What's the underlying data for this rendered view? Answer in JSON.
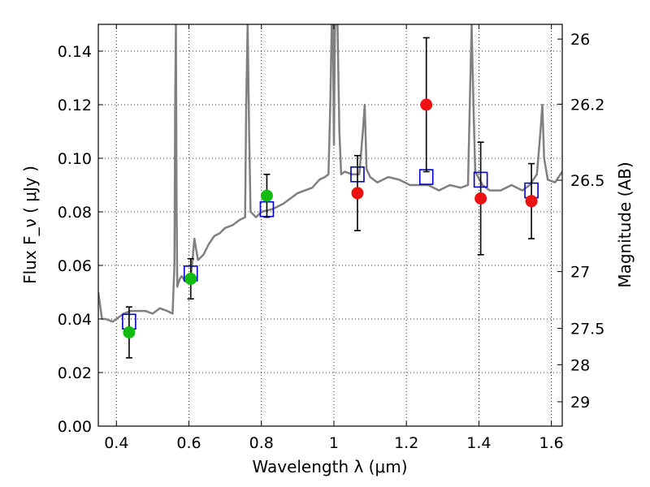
{
  "chart_data": {
    "type": "scatter",
    "xlabel": "Wavelength  λ (μm)",
    "ylabel": "Flux  F_ν  ( μJy )",
    "y2label": "Magnitude (AB)",
    "xlim": [
      0.35,
      1.63
    ],
    "ylim": [
      0.0,
      0.15
    ],
    "grid": true,
    "x_ticks": [
      0.4,
      0.6,
      0.8,
      1.0,
      1.2,
      1.4,
      1.6
    ],
    "x_tick_labels": [
      "0.4",
      "0.6",
      "0.8",
      "1",
      "1.2",
      "1.4",
      "1.6"
    ],
    "y_ticks": [
      0.0,
      0.02,
      0.04,
      0.06,
      0.08,
      0.1,
      0.12,
      0.14
    ],
    "y_tick_labels": [
      "0.00",
      "0.02",
      "0.04",
      "0.06",
      "0.08",
      "0.10",
      "0.12",
      "0.14"
    ],
    "y2_ticks": [
      {
        "label": "26",
        "flux": 0.1445
      },
      {
        "label": "26.2",
        "flux": 0.1202
      },
      {
        "label": "26.5",
        "flux": 0.0918
      },
      {
        "label": "27",
        "flux": 0.0577
      },
      {
        "label": "27.5",
        "flux": 0.0365
      },
      {
        "label": "28",
        "flux": 0.0229
      },
      {
        "label": "29",
        "flux": 0.0091
      }
    ],
    "series": [
      {
        "kind": "template-spectrum",
        "color": "#808080",
        "x": [
          0.35,
          0.36,
          0.37,
          0.39,
          0.4,
          0.42,
          0.44,
          0.46,
          0.48,
          0.5,
          0.52,
          0.54,
          0.555,
          0.56,
          0.562,
          0.564,
          0.566,
          0.568,
          0.57,
          0.575,
          0.58,
          0.59,
          0.6,
          0.605,
          0.61,
          0.615,
          0.625,
          0.64,
          0.655,
          0.67,
          0.685,
          0.7,
          0.72,
          0.74,
          0.755,
          0.758,
          0.762,
          0.766,
          0.77,
          0.785,
          0.8,
          0.83,
          0.86,
          0.9,
          0.94,
          0.96,
          0.975,
          0.985,
          0.99,
          0.994,
          0.997,
          1.0,
          1.003,
          1.01,
          1.015,
          1.02,
          1.03,
          1.05,
          1.07,
          1.08,
          1.085,
          1.09,
          1.1,
          1.12,
          1.15,
          1.18,
          1.21,
          1.24,
          1.26,
          1.29,
          1.32,
          1.35,
          1.37,
          1.375,
          1.38,
          1.385,
          1.39,
          1.41,
          1.43,
          1.46,
          1.49,
          1.52,
          1.54,
          1.56,
          1.57,
          1.575,
          1.58,
          1.59,
          1.61,
          1.63
        ],
        "y": [
          0.05,
          0.04,
          0.04,
          0.039,
          0.04,
          0.042,
          0.043,
          0.043,
          0.043,
          0.042,
          0.044,
          0.043,
          0.042,
          0.06,
          0.12,
          0.15,
          0.08,
          0.052,
          0.053,
          0.055,
          0.056,
          0.054,
          0.055,
          0.056,
          0.062,
          0.07,
          0.062,
          0.064,
          0.068,
          0.071,
          0.072,
          0.074,
          0.075,
          0.077,
          0.078,
          0.12,
          0.15,
          0.11,
          0.08,
          0.078,
          0.08,
          0.081,
          0.083,
          0.087,
          0.089,
          0.092,
          0.093,
          0.094,
          0.12,
          0.15,
          0.15,
          0.105,
          0.15,
          0.15,
          0.11,
          0.094,
          0.095,
          0.094,
          0.094,
          0.11,
          0.12,
          0.096,
          0.093,
          0.091,
          0.093,
          0.092,
          0.09,
          0.09,
          0.09,
          0.088,
          0.09,
          0.089,
          0.09,
          0.12,
          0.15,
          0.12,
          0.095,
          0.09,
          0.088,
          0.088,
          0.09,
          0.088,
          0.09,
          0.094,
          0.11,
          0.12,
          0.1,
          0.092,
          0.091,
          0.095
        ]
      },
      {
        "kind": "model-bandpass",
        "marker": "open-square",
        "color": "#0000cc",
        "x": [
          0.435,
          0.605,
          0.815,
          1.065,
          1.255,
          1.405,
          1.545
        ],
        "y": [
          0.039,
          0.057,
          0.081,
          0.094,
          0.093,
          0.092,
          0.088
        ]
      },
      {
        "kind": "observed",
        "marker": "filled-circle",
        "color": "#11bb11",
        "x": [
          0.435,
          0.605,
          0.815
        ],
        "y": [
          0.035,
          0.055,
          0.086
        ],
        "err": [
          0.0095,
          0.0075,
          0.008
        ]
      },
      {
        "kind": "observed",
        "marker": "filled-circle",
        "color": "#ee1111",
        "x": [
          1.065,
          1.255,
          1.405,
          1.545
        ],
        "y": [
          0.087,
          0.12,
          0.085,
          0.084
        ],
        "err": [
          0.014,
          0.025,
          0.021,
          0.014
        ]
      }
    ]
  }
}
